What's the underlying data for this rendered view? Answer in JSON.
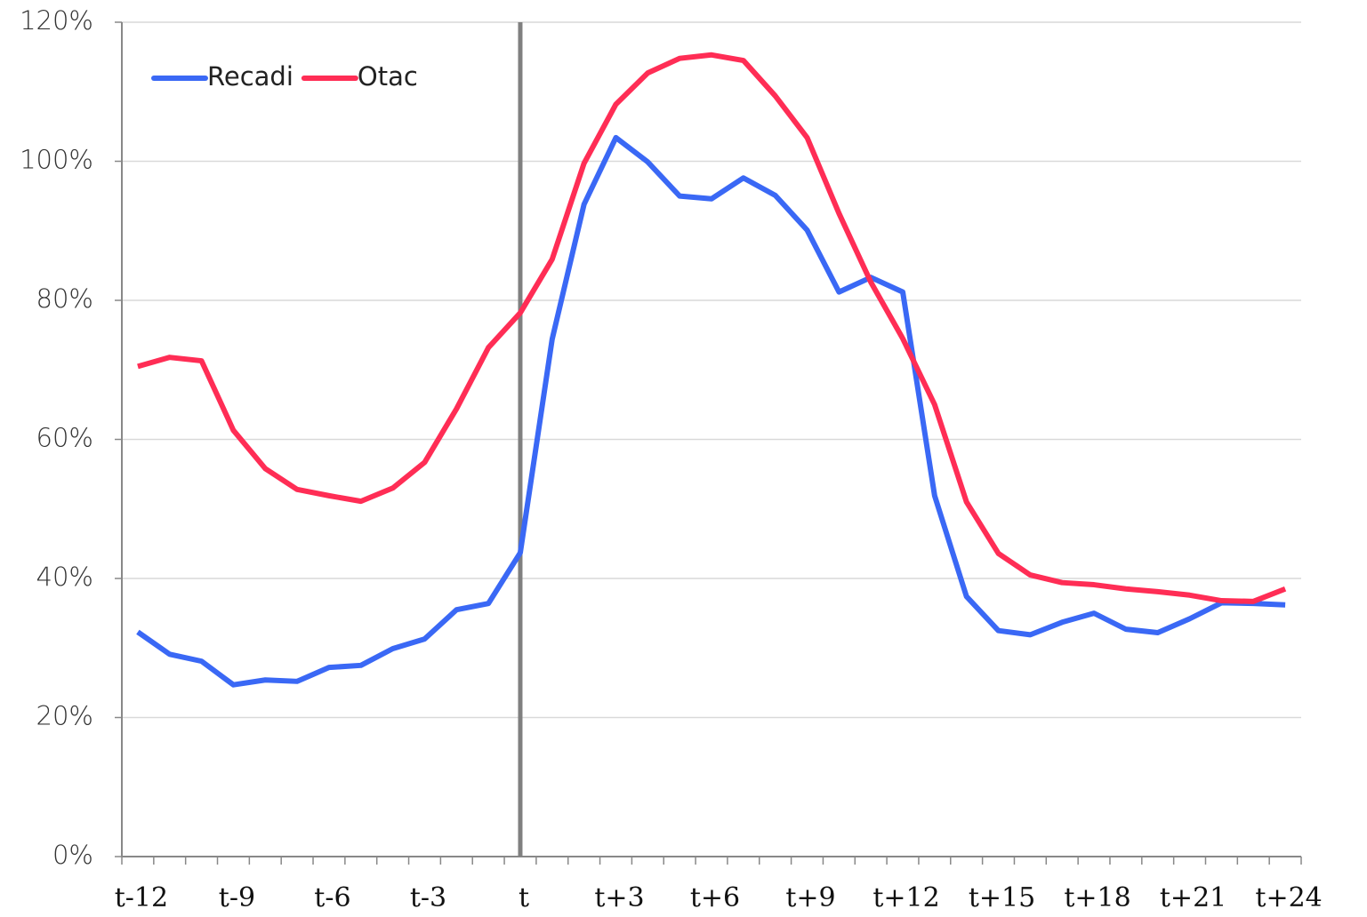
{
  "chart_data": {
    "type": "line",
    "categories": [
      "t-12",
      null,
      null,
      "t-9",
      null,
      null,
      "t-6",
      null,
      null,
      "t-3",
      null,
      null,
      "t",
      null,
      null,
      "t+3",
      null,
      null,
      "t+6",
      null,
      null,
      "t+9",
      null,
      null,
      "t+12",
      null,
      null,
      "t+15",
      null,
      null,
      "t+18",
      null,
      null,
      "t+21",
      null,
      null,
      "t+24"
    ],
    "series": [
      {
        "name": "Recadi",
        "color": "#3a68f5",
        "values": [
          32.3,
          29.1,
          28.1,
          24.7,
          25.4,
          25.2,
          27.2,
          27.5,
          29.9,
          31.3,
          35.5,
          36.4,
          43.7,
          74.4,
          93.8,
          103.4,
          99.9,
          95.0,
          94.6,
          97.6,
          95.1,
          90.1,
          81.2,
          83.3,
          81.2,
          51.9,
          37.4,
          32.5,
          31.9,
          33.7,
          35.0,
          32.7,
          32.2,
          34.2,
          36.5,
          36.4,
          36.2
        ]
      },
      {
        "name": "Otac",
        "color": "#ff2d55",
        "values": [
          70.5,
          71.8,
          71.3,
          61.3,
          55.8,
          52.8,
          51.9,
          51.1,
          53.0,
          56.7,
          64.4,
          73.2,
          78.2,
          85.9,
          99.7,
          108.2,
          112.7,
          114.8,
          115.3,
          114.5,
          109.4,
          103.4,
          92.5,
          82.6,
          74.5,
          65.0,
          51.0,
          43.6,
          40.5,
          39.4,
          39.1,
          38.5,
          38.1,
          37.6,
          36.8,
          36.7,
          38.5
        ]
      }
    ],
    "ylim": [
      0,
      120
    ],
    "yticks": [
      {
        "value": 0,
        "label": "0%"
      },
      {
        "value": 20,
        "label": "20%"
      },
      {
        "value": 40,
        "label": "40%"
      },
      {
        "value": 60,
        "label": "60%"
      },
      {
        "value": 80,
        "label": "80%"
      },
      {
        "value": 100,
        "label": "100%"
      },
      {
        "value": 120,
        "label": "120%"
      }
    ],
    "grid": true,
    "legend": "top-left",
    "reference_line": {
      "x": "t",
      "color": "#808080"
    }
  }
}
